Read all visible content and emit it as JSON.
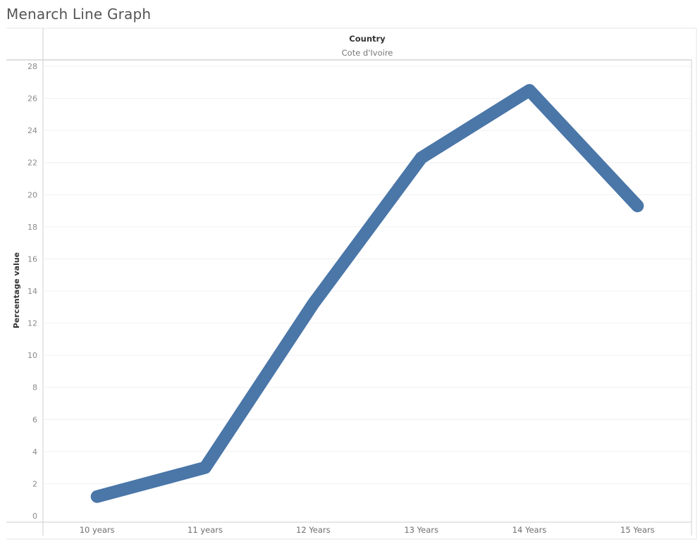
{
  "title": "Menarch Line Graph",
  "chart_data": {
    "type": "line",
    "column_header": {
      "title": "Country",
      "value": "Cote d'Ivoire"
    },
    "ylabel": "Percentage value",
    "xlabel": "",
    "ylim": [
      0,
      28
    ],
    "yticks": [
      0,
      2,
      4,
      6,
      8,
      10,
      12,
      14,
      16,
      18,
      20,
      22,
      24,
      26,
      28
    ],
    "categories": [
      "10 years",
      "11 years",
      "12 Years",
      "13 Years",
      "14 Years",
      "15 Years"
    ],
    "series": [
      {
        "values": [
          1.2,
          3.0,
          13.2,
          22.3,
          26.5,
          19.3
        ],
        "color": "#4a76a8"
      }
    ],
    "grid": true
  }
}
